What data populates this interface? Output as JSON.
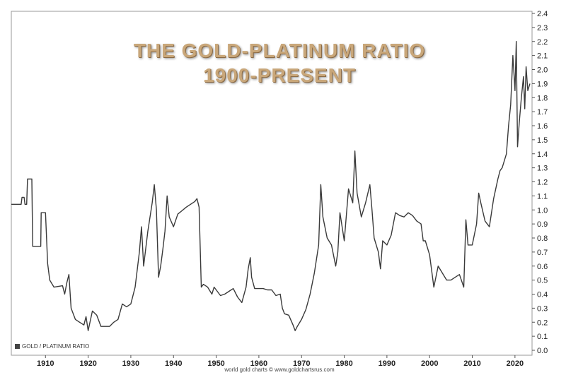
{
  "chart_data": {
    "type": "line",
    "title": "THE GOLD-PLATINUM RATIO",
    "subtitle": "1900-PRESENT",
    "xlim": [
      1902,
      2024
    ],
    "ylim": [
      0,
      2.4
    ],
    "x_ticks": [
      1910,
      1920,
      1930,
      1940,
      1950,
      1960,
      1970,
      1980,
      1990,
      2000,
      2010,
      2020
    ],
    "y_ticks": [
      "0.0",
      "0.1",
      "0.2",
      "0.3",
      "0.4",
      "0.5",
      "0.6",
      "0.7",
      "0.8",
      "0.9",
      "1.0",
      "1.1",
      "1.2",
      "1.3",
      "1.4",
      "1.5",
      "1.6",
      "1.7",
      "1.8",
      "1.9",
      "2.0",
      "2.1",
      "2.2",
      "2.3",
      "2.4"
    ],
    "grid": false,
    "legend_position": "bottom-left",
    "series": [
      {
        "name": "GOLD / PLATINUM RATIO",
        "color": "#3a3a3a",
        "points": [
          [
            1902.0,
            1.04
          ],
          [
            1904.3,
            1.04
          ],
          [
            1904.5,
            1.09
          ],
          [
            1905.0,
            1.09
          ],
          [
            1905.2,
            1.04
          ],
          [
            1905.6,
            1.04
          ],
          [
            1905.8,
            1.22
          ],
          [
            1906.8,
            1.22
          ],
          [
            1907.0,
            0.74
          ],
          [
            1908.9,
            0.74
          ],
          [
            1909.0,
            0.98
          ],
          [
            1910.0,
            0.98
          ],
          [
            1910.5,
            0.62
          ],
          [
            1911.0,
            0.5
          ],
          [
            1912.0,
            0.45
          ],
          [
            1914.0,
            0.46
          ],
          [
            1914.5,
            0.4
          ],
          [
            1915.0,
            0.48
          ],
          [
            1915.5,
            0.54
          ],
          [
            1916.0,
            0.3
          ],
          [
            1917.0,
            0.22
          ],
          [
            1918.0,
            0.2
          ],
          [
            1919.0,
            0.18
          ],
          [
            1919.5,
            0.24
          ],
          [
            1920.0,
            0.14
          ],
          [
            1921.0,
            0.28
          ],
          [
            1922.0,
            0.25
          ],
          [
            1923.0,
            0.17
          ],
          [
            1925.0,
            0.17
          ],
          [
            1926.0,
            0.2
          ],
          [
            1927.0,
            0.22
          ],
          [
            1928.0,
            0.33
          ],
          [
            1929.0,
            0.31
          ],
          [
            1930.0,
            0.33
          ],
          [
            1931.0,
            0.45
          ],
          [
            1932.0,
            0.7
          ],
          [
            1932.5,
            0.88
          ],
          [
            1933.0,
            0.6
          ],
          [
            1934.0,
            0.85
          ],
          [
            1935.0,
            1.05
          ],
          [
            1935.5,
            1.18
          ],
          [
            1936.0,
            1.0
          ],
          [
            1936.5,
            0.52
          ],
          [
            1937.0,
            0.6
          ],
          [
            1937.5,
            0.72
          ],
          [
            1938.0,
            0.85
          ],
          [
            1938.5,
            1.1
          ],
          [
            1939.0,
            0.95
          ],
          [
            1940.0,
            0.88
          ],
          [
            1941.0,
            0.97
          ],
          [
            1943.0,
            1.02
          ],
          [
            1945.0,
            1.06
          ],
          [
            1945.5,
            1.08
          ],
          [
            1946.0,
            1.02
          ],
          [
            1946.5,
            0.45
          ],
          [
            1947.0,
            0.47
          ],
          [
            1948.0,
            0.45
          ],
          [
            1949.0,
            0.4
          ],
          [
            1949.5,
            0.45
          ],
          [
            1950.0,
            0.43
          ],
          [
            1951.0,
            0.39
          ],
          [
            1952.0,
            0.4
          ],
          [
            1953.0,
            0.42
          ],
          [
            1954.0,
            0.44
          ],
          [
            1955.0,
            0.38
          ],
          [
            1956.0,
            0.34
          ],
          [
            1957.0,
            0.45
          ],
          [
            1957.5,
            0.58
          ],
          [
            1958.0,
            0.66
          ],
          [
            1958.3,
            0.52
          ],
          [
            1959.0,
            0.44
          ],
          [
            1961.0,
            0.44
          ],
          [
            1962.0,
            0.43
          ],
          [
            1963.0,
            0.43
          ],
          [
            1964.0,
            0.39
          ],
          [
            1965.0,
            0.4
          ],
          [
            1965.5,
            0.3
          ],
          [
            1966.0,
            0.26
          ],
          [
            1967.0,
            0.25
          ],
          [
            1968.0,
            0.18
          ],
          [
            1968.5,
            0.14
          ],
          [
            1969.0,
            0.17
          ],
          [
            1970.0,
            0.22
          ],
          [
            1971.0,
            0.29
          ],
          [
            1972.0,
            0.4
          ],
          [
            1973.0,
            0.55
          ],
          [
            1974.0,
            0.75
          ],
          [
            1974.5,
            1.18
          ],
          [
            1975.0,
            0.95
          ],
          [
            1976.0,
            0.8
          ],
          [
            1977.0,
            0.75
          ],
          [
            1978.0,
            0.6
          ],
          [
            1978.5,
            0.7
          ],
          [
            1979.0,
            0.98
          ],
          [
            1980.0,
            0.78
          ],
          [
            1981.0,
            1.15
          ],
          [
            1982.0,
            1.05
          ],
          [
            1982.5,
            1.42
          ],
          [
            1983.0,
            1.12
          ],
          [
            1984.0,
            0.95
          ],
          [
            1985.0,
            1.05
          ],
          [
            1986.0,
            1.18
          ],
          [
            1986.5,
            1.0
          ],
          [
            1987.0,
            0.8
          ],
          [
            1988.0,
            0.7
          ],
          [
            1988.5,
            0.58
          ],
          [
            1989.0,
            0.78
          ],
          [
            1990.0,
            0.75
          ],
          [
            1991.0,
            0.82
          ],
          [
            1992.0,
            0.98
          ],
          [
            1993.0,
            0.96
          ],
          [
            1994.0,
            0.95
          ],
          [
            1995.0,
            0.98
          ],
          [
            1996.0,
            0.96
          ],
          [
            1997.0,
            0.92
          ],
          [
            1998.0,
            0.9
          ],
          [
            1998.5,
            0.78
          ],
          [
            1999.0,
            0.78
          ],
          [
            2000.0,
            0.68
          ],
          [
            2001.0,
            0.45
          ],
          [
            2002.0,
            0.6
          ],
          [
            2003.0,
            0.55
          ],
          [
            2004.0,
            0.5
          ],
          [
            2005.0,
            0.5
          ],
          [
            2006.0,
            0.52
          ],
          [
            2007.0,
            0.54
          ],
          [
            2008.0,
            0.45
          ],
          [
            2008.5,
            0.93
          ],
          [
            2009.0,
            0.75
          ],
          [
            2010.0,
            0.75
          ],
          [
            2011.0,
            0.9
          ],
          [
            2011.5,
            1.12
          ],
          [
            2012.0,
            1.05
          ],
          [
            2013.0,
            0.92
          ],
          [
            2014.0,
            0.88
          ],
          [
            2015.0,
            1.08
          ],
          [
            2016.0,
            1.22
          ],
          [
            2016.5,
            1.28
          ],
          [
            2017.0,
            1.3
          ],
          [
            2018.0,
            1.4
          ],
          [
            2018.5,
            1.6
          ],
          [
            2019.0,
            1.75
          ],
          [
            2019.5,
            2.1
          ],
          [
            2020.0,
            1.85
          ],
          [
            2020.3,
            2.2
          ],
          [
            2020.6,
            1.45
          ],
          [
            2021.0,
            1.62
          ],
          [
            2021.5,
            1.8
          ],
          [
            2022.0,
            1.95
          ],
          [
            2022.3,
            1.72
          ],
          [
            2022.6,
            2.02
          ],
          [
            2023.0,
            1.85
          ],
          [
            2023.5,
            1.9
          ]
        ]
      }
    ]
  },
  "legend": {
    "label": "GOLD / PLATINUM RATIO"
  },
  "footer": {
    "credit": "world gold charts © www.goldchartsrus.com"
  }
}
